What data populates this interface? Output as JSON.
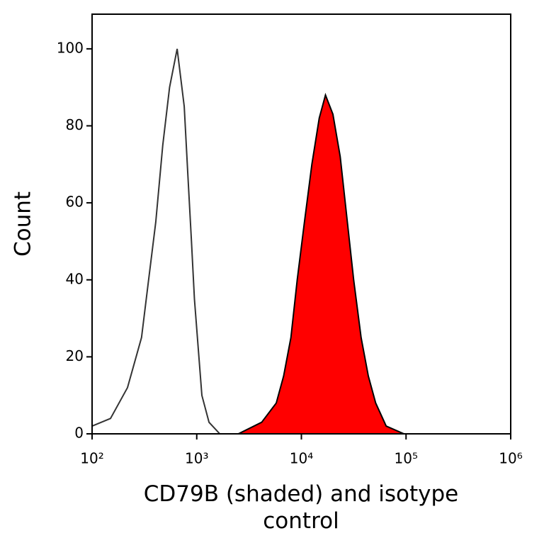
{
  "chart_data": {
    "type": "histogram-line",
    "x_label": "CD79B (shaded) and isotype control",
    "y_label": "Count",
    "xlim": [
      100,
      1000000
    ],
    "xscale": "log",
    "xticks": [
      {
        "value": 100,
        "label": "10²"
      },
      {
        "value": 1000,
        "label": "10³"
      },
      {
        "value": 10000,
        "label": "10⁴"
      },
      {
        "value": 100000,
        "label": "10⁵"
      },
      {
        "value": 1000000,
        "label": "10⁶"
      }
    ],
    "ylim": [
      0,
      109
    ],
    "yticks": [
      0,
      20,
      40,
      60,
      80,
      100
    ],
    "series": [
      {
        "color": "#333333",
        "fill": "none",
        "x": [
          100,
          150,
          218,
          297,
          347,
          406,
          474,
          550,
          650,
          760,
          820,
          890,
          950,
          1120,
          1310,
          1660,
          3000,
          10000,
          100000
        ],
        "values": [
          2,
          4,
          12,
          25,
          40,
          55,
          75,
          90,
          100,
          85,
          68,
          50,
          35,
          10,
          3,
          0,
          0,
          0,
          0
        ]
      },
      {
        "color": "#000000",
        "fill": "#ff0000",
        "x": [
          2500,
          4170,
          5750,
          6760,
          7940,
          9120,
          10700,
          12600,
          14800,
          17000,
          20000,
          23500,
          27500,
          31600,
          37200,
          43600,
          51300,
          64600,
          95500
        ],
        "values": [
          0,
          3,
          8,
          15,
          25,
          40,
          55,
          70,
          82,
          88,
          83,
          72,
          55,
          40,
          25,
          15,
          8,
          2,
          0
        ]
      }
    ]
  }
}
